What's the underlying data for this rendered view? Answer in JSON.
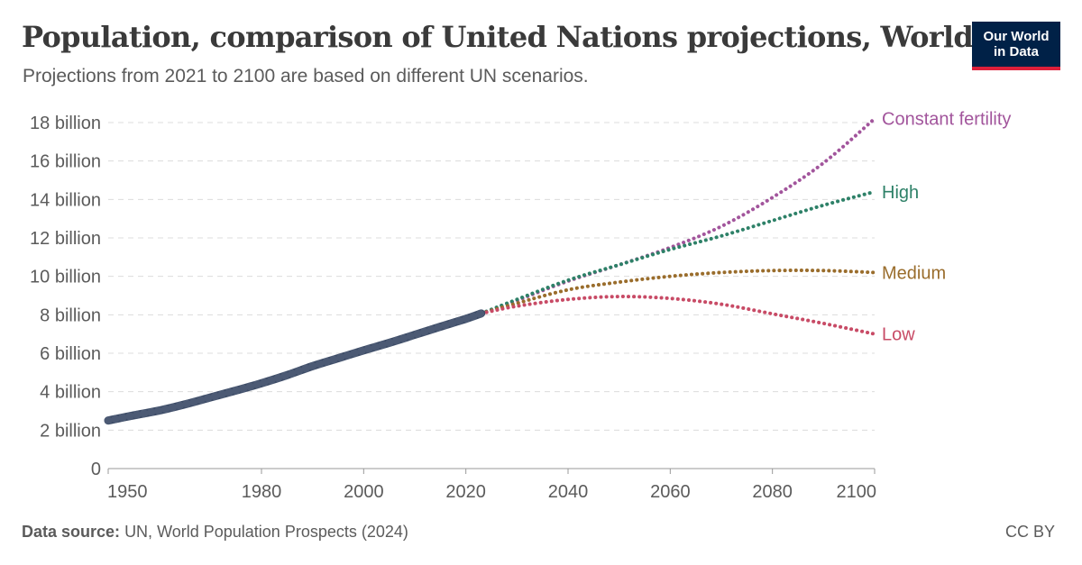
{
  "header": {
    "title": "Population, comparison of United Nations projections, World",
    "subtitle": "Projections from 2021 to 2100 are based on different UN scenarios."
  },
  "logo": {
    "line1": "Our World",
    "line2": "in Data"
  },
  "footer": {
    "source_label": "Data source:",
    "source_text": "UN, World Population Prospects (2024)",
    "license": "CC BY"
  },
  "chart_data": {
    "type": "line",
    "xlim": [
      1950,
      2100
    ],
    "ylim": [
      0,
      18
    ],
    "y_unit": "billion",
    "x_ticks": [
      "1950",
      "1980",
      "2000",
      "2020",
      "2040",
      "2060",
      "2080",
      "2100"
    ],
    "x_tick_values": [
      1950,
      1980,
      2000,
      2020,
      2040,
      2060,
      2080,
      2100
    ],
    "y_ticks": [
      "0",
      "2 billion",
      "4 billion",
      "6 billion",
      "8 billion",
      "10 billion",
      "12 billion",
      "14 billion",
      "16 billion",
      "18 billion"
    ],
    "y_tick_values": [
      0,
      2,
      4,
      6,
      8,
      10,
      12,
      14,
      16,
      18
    ],
    "grid": true,
    "historical": {
      "color": "#3c4b66",
      "x": [
        1950,
        1955,
        1960,
        1965,
        1970,
        1975,
        1980,
        1985,
        1990,
        1995,
        2000,
        2005,
        2010,
        2015,
        2020,
        2023
      ],
      "values": [
        2.5,
        2.77,
        3.02,
        3.34,
        3.7,
        4.06,
        4.44,
        4.86,
        5.33,
        5.74,
        6.15,
        6.54,
        6.96,
        7.38,
        7.79,
        8.07
      ]
    },
    "series": [
      {
        "name": "Constant fertility",
        "color": "#a2559c",
        "x": [
          2023,
          2030,
          2040,
          2050,
          2060,
          2070,
          2080,
          2090,
          2100
        ],
        "values": [
          8.07,
          8.75,
          9.75,
          10.6,
          11.5,
          12.6,
          14.1,
          15.9,
          18.2
        ]
      },
      {
        "name": "High",
        "color": "#2e8168",
        "x": [
          2023,
          2030,
          2040,
          2050,
          2060,
          2070,
          2080,
          2090,
          2100
        ],
        "values": [
          8.07,
          8.8,
          9.8,
          10.6,
          11.4,
          12.1,
          12.9,
          13.7,
          14.4
        ]
      },
      {
        "name": "Medium",
        "color": "#9a6d2c",
        "x": [
          2023,
          2030,
          2040,
          2050,
          2060,
          2070,
          2080,
          2090,
          2100
        ],
        "values": [
          8.07,
          8.6,
          9.3,
          9.7,
          10.0,
          10.2,
          10.3,
          10.3,
          10.2
        ]
      },
      {
        "name": "Low",
        "color": "#c84b66",
        "x": [
          2023,
          2030,
          2040,
          2050,
          2060,
          2070,
          2080,
          2090,
          2100
        ],
        "values": [
          8.07,
          8.45,
          8.8,
          8.95,
          8.85,
          8.55,
          8.05,
          7.55,
          7.0
        ]
      }
    ]
  }
}
